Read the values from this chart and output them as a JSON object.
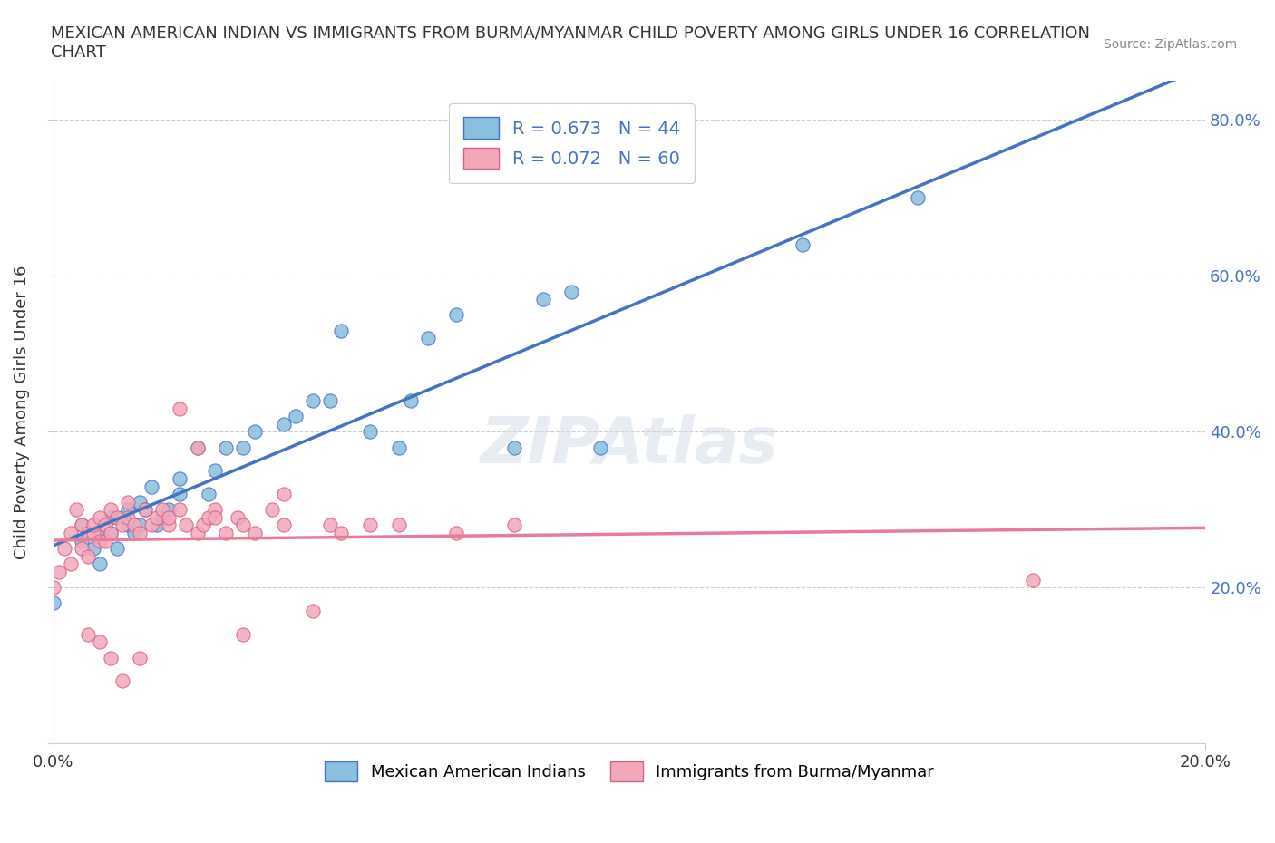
{
  "title": "MEXICAN AMERICAN INDIAN VS IMMIGRANTS FROM BURMA/MYANMAR CHILD POVERTY AMONG GIRLS UNDER 16 CORRELATION\nCHART",
  "source_text": "Source: ZipAtlas.com",
  "ylabel": "Child Poverty Among Girls Under 16",
  "xlim": [
    0.0,
    0.2
  ],
  "ylim": [
    0.0,
    0.85
  ],
  "x_ticks": [
    0.0,
    0.2
  ],
  "x_tick_labels": [
    "0.0%",
    "20.0%"
  ],
  "y_ticks": [
    0.0,
    0.2,
    0.4,
    0.6,
    0.8
  ],
  "y_tick_labels": [
    "",
    "20.0%",
    "40.0%",
    "60.0%",
    "80.0%"
  ],
  "r_blue": 0.673,
  "n_blue": 44,
  "r_pink": 0.072,
  "n_pink": 60,
  "legend_label_blue": "Mexican American Indians",
  "legend_label_pink": "Immigrants from Burma/Myanmar",
  "color_blue": "#89bfdf",
  "color_pink": "#f4a7b9",
  "line_color_blue": "#4472c4",
  "line_color_pink": "#e87b9b",
  "watermark": "ZIPAtlas",
  "background_color": "#ffffff",
  "blue_scatter_x": [
    0.0,
    0.005,
    0.005,
    0.007,
    0.008,
    0.008,
    0.01,
    0.01,
    0.011,
    0.012,
    0.013,
    0.013,
    0.014,
    0.015,
    0.015,
    0.016,
    0.017,
    0.018,
    0.019,
    0.02,
    0.022,
    0.022,
    0.025,
    0.027,
    0.028,
    0.03,
    0.033,
    0.035,
    0.04,
    0.042,
    0.045,
    0.048,
    0.05,
    0.055,
    0.06,
    0.062,
    0.065,
    0.07,
    0.08,
    0.085,
    0.09,
    0.095,
    0.13,
    0.15
  ],
  "blue_scatter_y": [
    0.18,
    0.26,
    0.28,
    0.25,
    0.23,
    0.27,
    0.27,
    0.29,
    0.25,
    0.29,
    0.28,
    0.3,
    0.27,
    0.28,
    0.31,
    0.3,
    0.33,
    0.28,
    0.29,
    0.3,
    0.32,
    0.34,
    0.38,
    0.32,
    0.35,
    0.38,
    0.38,
    0.4,
    0.41,
    0.42,
    0.44,
    0.44,
    0.53,
    0.4,
    0.38,
    0.44,
    0.52,
    0.55,
    0.38,
    0.57,
    0.58,
    0.38,
    0.64,
    0.7
  ],
  "pink_scatter_x": [
    0.0,
    0.001,
    0.002,
    0.003,
    0.003,
    0.004,
    0.005,
    0.005,
    0.006,
    0.006,
    0.007,
    0.007,
    0.008,
    0.008,
    0.009,
    0.009,
    0.01,
    0.01,
    0.011,
    0.012,
    0.013,
    0.013,
    0.014,
    0.015,
    0.016,
    0.017,
    0.018,
    0.019,
    0.02,
    0.02,
    0.022,
    0.023,
    0.025,
    0.026,
    0.027,
    0.028,
    0.03,
    0.032,
    0.033,
    0.035,
    0.038,
    0.04,
    0.045,
    0.048,
    0.05,
    0.055,
    0.06,
    0.07,
    0.08,
    0.17,
    0.022,
    0.033,
    0.025,
    0.04,
    0.028,
    0.015,
    0.012,
    0.01,
    0.008,
    0.006
  ],
  "pink_scatter_y": [
    0.2,
    0.22,
    0.25,
    0.27,
    0.23,
    0.3,
    0.25,
    0.28,
    0.24,
    0.27,
    0.27,
    0.28,
    0.26,
    0.29,
    0.26,
    0.28,
    0.27,
    0.3,
    0.29,
    0.28,
    0.29,
    0.31,
    0.28,
    0.27,
    0.3,
    0.28,
    0.29,
    0.3,
    0.28,
    0.29,
    0.3,
    0.28,
    0.27,
    0.28,
    0.29,
    0.3,
    0.27,
    0.29,
    0.28,
    0.27,
    0.3,
    0.28,
    0.17,
    0.28,
    0.27,
    0.28,
    0.28,
    0.27,
    0.28,
    0.21,
    0.43,
    0.14,
    0.38,
    0.32,
    0.29,
    0.11,
    0.08,
    0.11,
    0.13,
    0.14
  ]
}
